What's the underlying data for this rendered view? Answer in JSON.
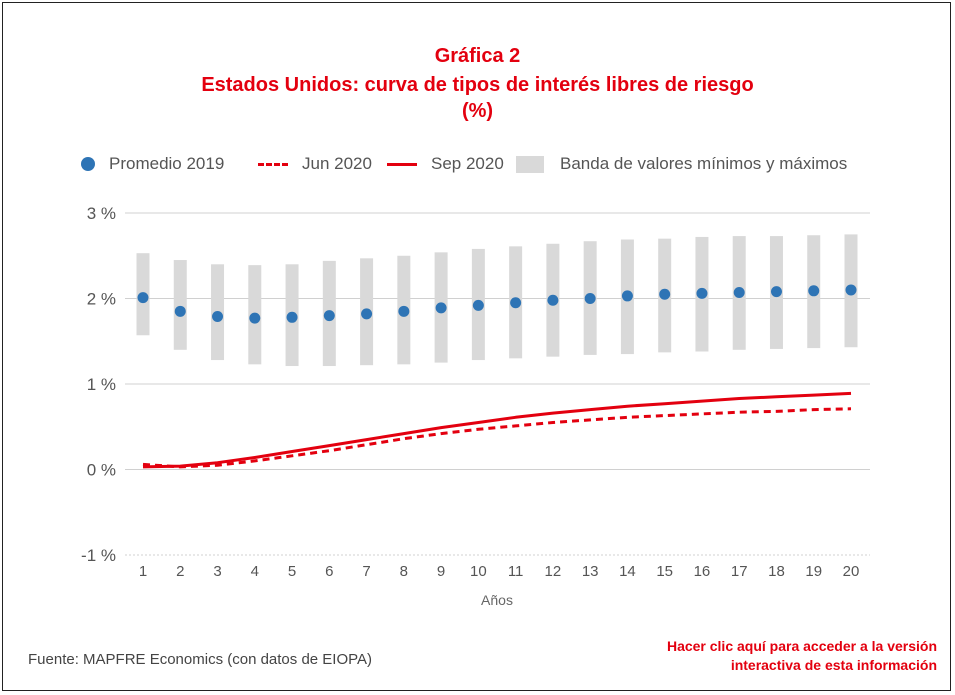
{
  "header": {
    "title_line1": "Gráfica 2",
    "title_line2": "Estados Unidos: curva de tipos de interés libres de riesgo",
    "title_line3": "(%)"
  },
  "footer": {
    "source": "Fuente: MAPFRE Economics (con datos de EIOPA)",
    "link_line1": "Hacer clic aquí para acceder a la versión",
    "link_line2": "interactiva de esta información"
  },
  "colors": {
    "title": "#e3000f",
    "dots": "#2e74b5",
    "lines": "#e3000f",
    "band": "#d9d9d9"
  },
  "chart_data": {
    "type": "line",
    "xlabel": "Años",
    "ylabel": "",
    "x": [
      1,
      2,
      3,
      4,
      5,
      6,
      7,
      8,
      9,
      10,
      11,
      12,
      13,
      14,
      15,
      16,
      17,
      18,
      19,
      20
    ],
    "ylim": [
      -1,
      3
    ],
    "y_ticks": [
      -1,
      0,
      1,
      2,
      3
    ],
    "y_tick_labels": [
      "-1 %",
      "0 %",
      "1 %",
      "2 %",
      "3 %"
    ],
    "grid": true,
    "legend_position": "top",
    "legend": [
      "Promedio 2019",
      "Jun 2020",
      "Sep 2020",
      "Banda de valores mínimos y máximos"
    ],
    "series": [
      {
        "name": "Promedio 2019",
        "style": "dots",
        "values": [
          2.01,
          1.85,
          1.79,
          1.77,
          1.78,
          1.8,
          1.82,
          1.85,
          1.89,
          1.92,
          1.95,
          1.98,
          2.0,
          2.03,
          2.05,
          2.06,
          2.07,
          2.08,
          2.09,
          2.1
        ]
      },
      {
        "name": "Jun 2020",
        "style": "dashed",
        "values": [
          0.06,
          0.03,
          0.05,
          0.1,
          0.16,
          0.22,
          0.29,
          0.36,
          0.42,
          0.47,
          0.51,
          0.55,
          0.58,
          0.61,
          0.63,
          0.65,
          0.67,
          0.68,
          0.7,
          0.71
        ]
      },
      {
        "name": "Sep 2020",
        "style": "solid",
        "values": [
          0.03,
          0.04,
          0.08,
          0.14,
          0.21,
          0.28,
          0.35,
          0.42,
          0.49,
          0.55,
          0.61,
          0.66,
          0.7,
          0.74,
          0.77,
          0.8,
          0.83,
          0.85,
          0.87,
          0.89
        ]
      },
      {
        "name": "Banda de valores mínimos y máximos",
        "style": "band",
        "min": [
          1.57,
          1.4,
          1.28,
          1.23,
          1.21,
          1.21,
          1.22,
          1.23,
          1.25,
          1.28,
          1.3,
          1.32,
          1.34,
          1.35,
          1.37,
          1.38,
          1.4,
          1.41,
          1.42,
          1.43
        ],
        "max": [
          2.53,
          2.45,
          2.4,
          2.39,
          2.4,
          2.44,
          2.47,
          2.5,
          2.54,
          2.58,
          2.61,
          2.64,
          2.67,
          2.69,
          2.7,
          2.72,
          2.73,
          2.73,
          2.74,
          2.75
        ]
      }
    ]
  }
}
